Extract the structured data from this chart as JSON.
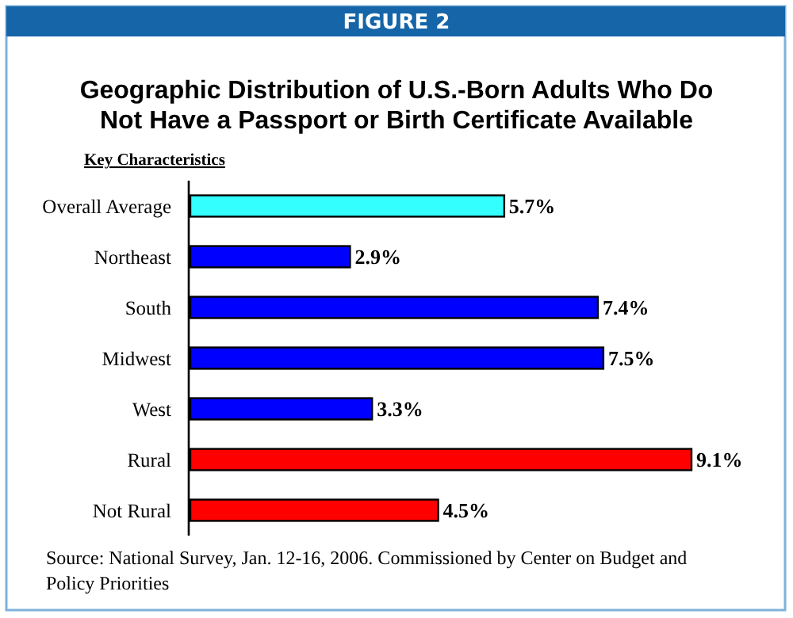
{
  "chart_data": {
    "type": "bar",
    "orientation": "horizontal",
    "title": "Geographic Distribution of U.S.-Born Adults Who Do Not Have a Passport or Birth Certificate Available",
    "ylabel": "Key Characteristics",
    "categories": [
      "Overall Average",
      "Northeast",
      "South",
      "Midwest",
      "West",
      "Rural",
      "Not Rural"
    ],
    "values": [
      5.7,
      2.9,
      7.4,
      7.5,
      3.3,
      9.1,
      4.5
    ],
    "colors": [
      "#33ffff",
      "#0000ff",
      "#0000ff",
      "#0000ff",
      "#0000ff",
      "#ff0000",
      "#ff0000"
    ],
    "value_labels": [
      "5.7%",
      "2.9%",
      "7.4%",
      "7.5%",
      "3.3%",
      "9.1%",
      "4.5%"
    ],
    "annotations": [
      "FIGURE 2",
      "Source: National Survey, Jan. 12-16, 2006.  Commissioned by Center on Budget and Policy Priorities"
    ]
  }
}
